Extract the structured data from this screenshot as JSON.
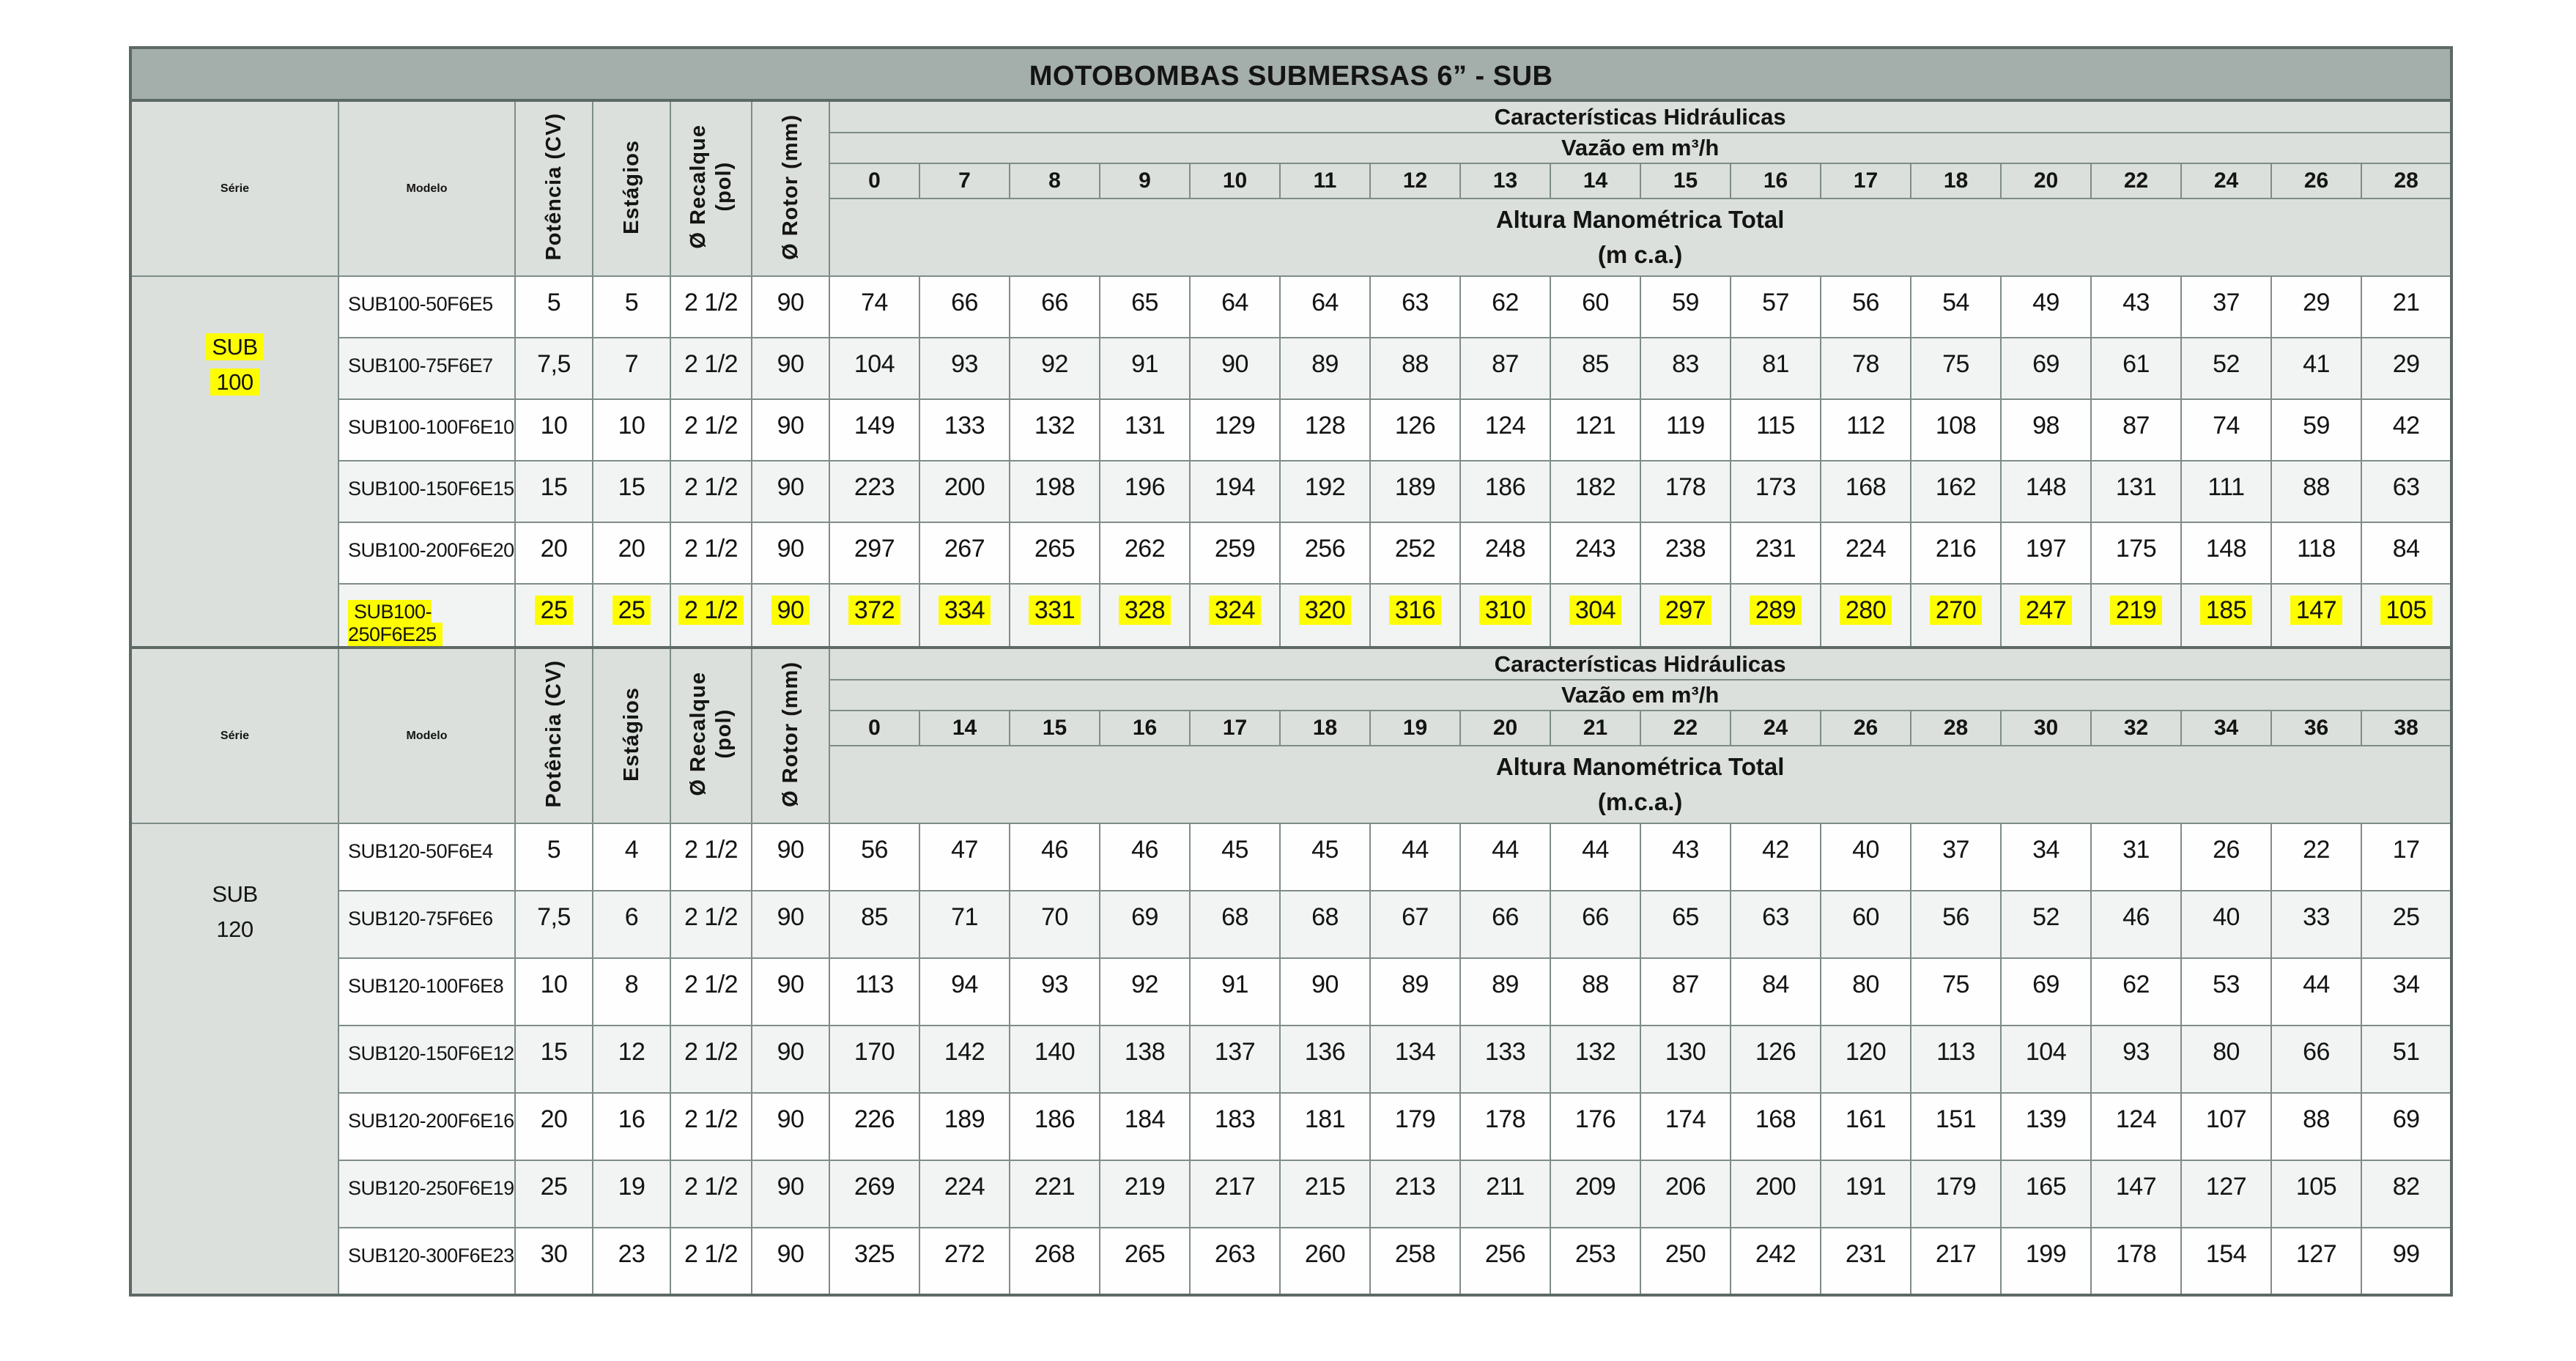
{
  "title": "MOTOBOMBAS SUBMERSAS 6” - SUB",
  "colors": {
    "title_bg": "#a4aeab",
    "header_bg": "#dbe0dc",
    "row_alt_bg": "#f1f4f3",
    "border": "#7f8c89",
    "outer_border": "#5d6966",
    "highlight": "#fdfd00"
  },
  "header": {
    "serie": "Série",
    "modelo": "Modelo",
    "potencia": "Potência (CV)",
    "estagios": "Estágios",
    "recalque": "Ø Recalque\n(pol)",
    "rotor": "Ø Rotor (mm)",
    "caracteristicas": "Características Hidráulicas",
    "vazao": "Vazão em m³/h",
    "altura": "Altura Manométrica Total"
  },
  "sections": [
    {
      "serie": [
        "SUB",
        "100"
      ],
      "serie_highlight": true,
      "altura_unit": "(m c.a.)",
      "flows": [
        "0",
        "7",
        "8",
        "9",
        "10",
        "11",
        "12",
        "13",
        "14",
        "15",
        "16",
        "17",
        "18",
        "20",
        "22",
        "24",
        "26",
        "28"
      ],
      "rows": [
        {
          "modelo": "SUB100-50F6E5",
          "potencia": "5",
          "estagios": "5",
          "recalque": "2 1/2",
          "rotor": "90",
          "highlight": false,
          "values": [
            "74",
            "66",
            "66",
            "65",
            "64",
            "64",
            "63",
            "62",
            "60",
            "59",
            "57",
            "56",
            "54",
            "49",
            "43",
            "37",
            "29",
            "21"
          ]
        },
        {
          "modelo": "SUB100-75F6E7",
          "potencia": "7,5",
          "estagios": "7",
          "recalque": "2 1/2",
          "rotor": "90",
          "highlight": false,
          "values": [
            "104",
            "93",
            "92",
            "91",
            "90",
            "89",
            "88",
            "87",
            "85",
            "83",
            "81",
            "78",
            "75",
            "69",
            "61",
            "52",
            "41",
            "29"
          ]
        },
        {
          "modelo": "SUB100-100F6E10",
          "potencia": "10",
          "estagios": "10",
          "recalque": "2 1/2",
          "rotor": "90",
          "highlight": false,
          "values": [
            "149",
            "133",
            "132",
            "131",
            "129",
            "128",
            "126",
            "124",
            "121",
            "119",
            "115",
            "112",
            "108",
            "98",
            "87",
            "74",
            "59",
            "42"
          ]
        },
        {
          "modelo": "SUB100-150F6E15",
          "potencia": "15",
          "estagios": "15",
          "recalque": "2 1/2",
          "rotor": "90",
          "highlight": false,
          "values": [
            "223",
            "200",
            "198",
            "196",
            "194",
            "192",
            "189",
            "186",
            "182",
            "178",
            "173",
            "168",
            "162",
            "148",
            "131",
            "111",
            "88",
            "63"
          ]
        },
        {
          "modelo": "SUB100-200F6E20",
          "potencia": "20",
          "estagios": "20",
          "recalque": "2 1/2",
          "rotor": "90",
          "highlight": false,
          "values": [
            "297",
            "267",
            "265",
            "262",
            "259",
            "256",
            "252",
            "248",
            "243",
            "238",
            "231",
            "224",
            "216",
            "197",
            "175",
            "148",
            "118",
            "84"
          ]
        },
        {
          "modelo": "SUB100-250F6E25",
          "potencia": "25",
          "estagios": "25",
          "recalque": "2 1/2",
          "rotor": "90",
          "highlight": true,
          "values": [
            "372",
            "334",
            "331",
            "328",
            "324",
            "320",
            "316",
            "310",
            "304",
            "297",
            "289",
            "280",
            "270",
            "247",
            "219",
            "185",
            "147",
            "105"
          ]
        }
      ]
    },
    {
      "serie": [
        "SUB",
        "120"
      ],
      "serie_highlight": false,
      "altura_unit": "(m.c.a.)",
      "flows": [
        "0",
        "14",
        "15",
        "16",
        "17",
        "18",
        "19",
        "20",
        "21",
        "22",
        "24",
        "26",
        "28",
        "30",
        "32",
        "34",
        "36",
        "38"
      ],
      "rows": [
        {
          "modelo": "SUB120-50F6E4",
          "potencia": "5",
          "estagios": "4",
          "recalque": "2 1/2",
          "rotor": "90",
          "highlight": false,
          "values": [
            "56",
            "47",
            "46",
            "46",
            "45",
            "45",
            "44",
            "44",
            "44",
            "43",
            "42",
            "40",
            "37",
            "34",
            "31",
            "26",
            "22",
            "17"
          ]
        },
        {
          "modelo": "SUB120-75F6E6",
          "potencia": "7,5",
          "estagios": "6",
          "recalque": "2 1/2",
          "rotor": "90",
          "highlight": false,
          "values": [
            "85",
            "71",
            "70",
            "69",
            "68",
            "68",
            "67",
            "66",
            "66",
            "65",
            "63",
            "60",
            "56",
            "52",
            "46",
            "40",
            "33",
            "25"
          ]
        },
        {
          "modelo": "SUB120-100F6E8",
          "potencia": "10",
          "estagios": "8",
          "recalque": "2 1/2",
          "rotor": "90",
          "highlight": false,
          "values": [
            "113",
            "94",
            "93",
            "92",
            "91",
            "90",
            "89",
            "89",
            "88",
            "87",
            "84",
            "80",
            "75",
            "69",
            "62",
            "53",
            "44",
            "34"
          ]
        },
        {
          "modelo": "SUB120-150F6E12",
          "potencia": "15",
          "estagios": "12",
          "recalque": "2 1/2",
          "rotor": "90",
          "highlight": false,
          "values": [
            "170",
            "142",
            "140",
            "138",
            "137",
            "136",
            "134",
            "133",
            "132",
            "130",
            "126",
            "120",
            "113",
            "104",
            "93",
            "80",
            "66",
            "51"
          ]
        },
        {
          "modelo": "SUB120-200F6E16",
          "potencia": "20",
          "estagios": "16",
          "recalque": "2 1/2",
          "rotor": "90",
          "highlight": false,
          "values": [
            "226",
            "189",
            "186",
            "184",
            "183",
            "181",
            "179",
            "178",
            "176",
            "174",
            "168",
            "161",
            "151",
            "139",
            "124",
            "107",
            "88",
            "69"
          ]
        },
        {
          "modelo": "SUB120-250F6E19",
          "potencia": "25",
          "estagios": "19",
          "recalque": "2 1/2",
          "rotor": "90",
          "highlight": false,
          "values": [
            "269",
            "224",
            "221",
            "219",
            "217",
            "215",
            "213",
            "211",
            "209",
            "206",
            "200",
            "191",
            "179",
            "165",
            "147",
            "127",
            "105",
            "82"
          ]
        },
        {
          "modelo": "SUB120-300F6E23",
          "potencia": "30",
          "estagios": "23",
          "recalque": "2 1/2",
          "rotor": "90",
          "highlight": false,
          "values": [
            "325",
            "272",
            "268",
            "265",
            "263",
            "260",
            "258",
            "256",
            "253",
            "250",
            "242",
            "231",
            "217",
            "199",
            "178",
            "154",
            "127",
            "99"
          ]
        }
      ]
    }
  ]
}
